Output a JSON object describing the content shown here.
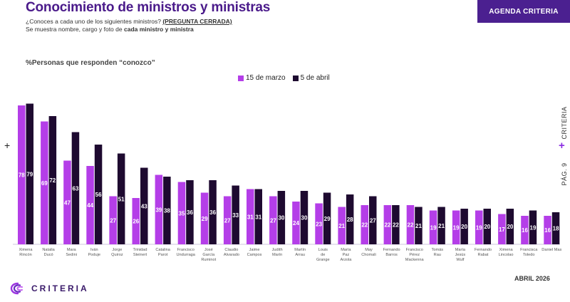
{
  "header": {
    "title": "Conocimiento de ministros y ministras",
    "question": "¿Conoces a cada uno de los siguientes ministros?",
    "question_tag": "(PREGUNTA CERRADA)",
    "subtitle_prefix": "Se muestra nombre, cargo y foto de",
    "subtitle_bold": "cada ministro y ministra",
    "badge": "AGENDA CRITERIA"
  },
  "metric_label": "%Personas que responden “conozco”",
  "side": {
    "label": "CRITERIA",
    "page": "PÁG. 9"
  },
  "footer": {
    "brand": "CRITERIA",
    "date": "ABRIL 2026"
  },
  "colors": {
    "series1": "#b43ee8",
    "series2": "#1e0a30",
    "brand": "#4b2090",
    "accent": "#8a2be2"
  },
  "chart_data": {
    "type": "bar",
    "categories": [
      "Ximena Rincón",
      "Natalia Ducó",
      "Mara Sedini",
      "Iván Poduje",
      "Jorge Quiroz",
      "Trinidad Steinert",
      "Catalina Parot",
      "Francisco Undurraga",
      "José García Ruminot",
      "Claudio Alvarado",
      "Jaime Campos",
      "Judith Marín",
      "Martín Arrau",
      "Louis de Grange",
      "María Paz Arzola",
      "May Chomali",
      "Fernando Barros",
      "Francisco Pérez Mackenna",
      "Tomás Rau",
      "María Jesús Wulf",
      "Fernando Rabat",
      "Ximena Lincolao",
      "Francisca Toledo",
      "Daniel Mas"
    ],
    "series": [
      {
        "name": "15 de marzo",
        "values": [
          78,
          69,
          47,
          44,
          27,
          26,
          39,
          35,
          29,
          27,
          31,
          27,
          24,
          23,
          21,
          22,
          22,
          22,
          19,
          19,
          19,
          17,
          16,
          16
        ]
      },
      {
        "name": "5 de abril",
        "values": [
          79,
          72,
          63,
          56,
          51,
          43,
          38,
          36,
          36,
          33,
          31,
          30,
          30,
          29,
          28,
          27,
          22,
          21,
          21,
          20,
          20,
          20,
          19,
          18
        ]
      }
    ],
    "ylim": [
      0,
      82
    ],
    "grid": false,
    "legend": "top-center",
    "data_labels": true
  }
}
